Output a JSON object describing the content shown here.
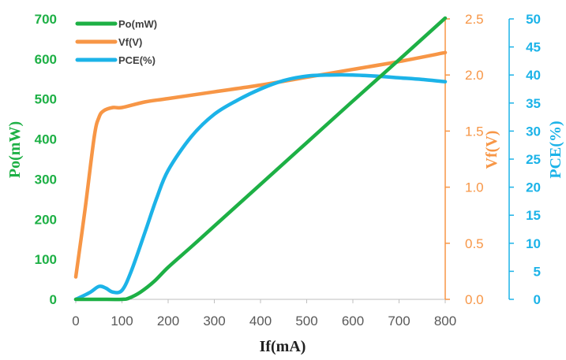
{
  "chart_data": {
    "type": "line",
    "xlabel": "If(mA)",
    "x_ticks": [
      "0",
      "100",
      "200",
      "300",
      "400",
      "500",
      "600",
      "700",
      "800"
    ],
    "xlim": [
      0,
      800
    ],
    "grid": false,
    "legend_position": "top-left",
    "axes": {
      "left": {
        "label": "Po(mW)",
        "color": "#1DB045",
        "range": [
          0,
          700
        ],
        "ticks": [
          "0",
          "100",
          "200",
          "300",
          "400",
          "500",
          "600",
          "700"
        ]
      },
      "right_inner": {
        "label": "Vf(V)",
        "color": "#F79646",
        "range": [
          0,
          2.5
        ],
        "ticks": [
          "0.0",
          "0.5",
          "1.0",
          "1.5",
          "2.0",
          "2.5"
        ]
      },
      "right_outer": {
        "label": "PCE(%)",
        "color": "#1CB3E8",
        "range": [
          0,
          50
        ],
        "ticks": [
          "0",
          "5",
          "10",
          "15",
          "20",
          "25",
          "30",
          "35",
          "40",
          "45",
          "50"
        ]
      }
    },
    "series": [
      {
        "name": "Po(mW)",
        "color": "#1DB045",
        "axis": "left",
        "x": [
          0,
          50,
          100,
          115,
          140,
          170,
          200,
          250,
          300,
          400,
          500,
          600,
          700,
          800
        ],
        "y": [
          0,
          0,
          0,
          3,
          18,
          45,
          80,
          131,
          183,
          287,
          391,
          495,
          598,
          702
        ]
      },
      {
        "name": "Vf(V)",
        "color": "#F79646",
        "axis": "right_inner",
        "x": [
          0,
          20,
          40,
          50,
          60,
          80,
          100,
          150,
          200,
          300,
          400,
          500,
          600,
          700,
          800
        ],
        "y": [
          0.2,
          0.8,
          1.45,
          1.62,
          1.68,
          1.71,
          1.71,
          1.76,
          1.79,
          1.85,
          1.91,
          1.98,
          2.05,
          2.12,
          2.2
        ]
      },
      {
        "name": "PCE(%)",
        "color": "#1CB3E8",
        "axis": "right_outer",
        "x": [
          0,
          30,
          50,
          65,
          80,
          100,
          120,
          150,
          175,
          200,
          250,
          300,
          350,
          400,
          450,
          500,
          550,
          600,
          650,
          700,
          750,
          800
        ],
        "y": [
          0,
          1.2,
          2.3,
          2.0,
          1.3,
          1.6,
          5,
          12,
          18,
          23,
          29,
          33,
          35.5,
          37.5,
          39,
          39.8,
          40,
          40,
          39.8,
          39.5,
          39.2,
          38.8
        ]
      }
    ]
  }
}
